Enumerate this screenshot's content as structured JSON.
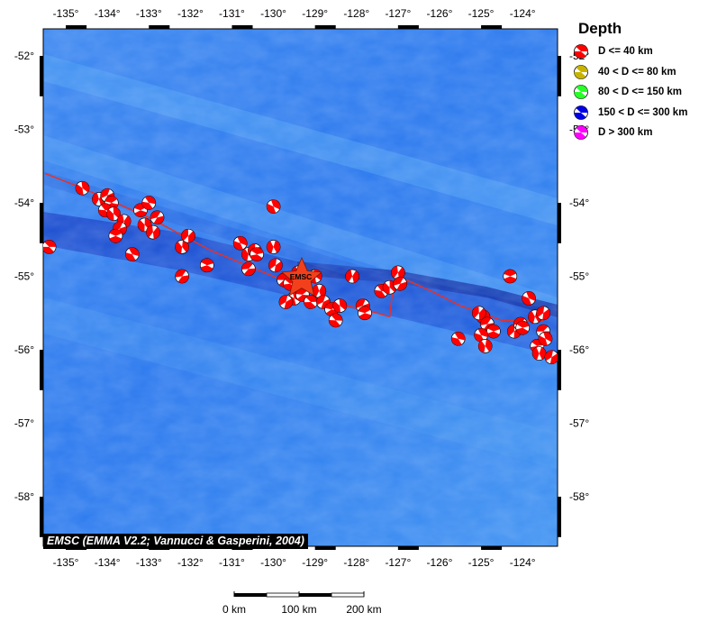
{
  "map": {
    "lon_range": [
      -135.5,
      -123.3
    ],
    "lat_range": [
      -52.0,
      -58.0
    ],
    "lon_ticks": [
      -135,
      -134,
      -133,
      -132,
      -131,
      -130,
      -129,
      -128,
      -127,
      -126,
      -125,
      -124
    ],
    "lat_ticks": [
      -52,
      -53,
      -54,
      -55,
      -56,
      -57,
      -58
    ],
    "lon_tick_labels": [
      "-135°",
      "-134°",
      "-133°",
      "-132°",
      "-131°",
      "-130°",
      "-129°",
      "-128°",
      "-127°",
      "-126°",
      "-125°",
      "-124°"
    ],
    "lat_tick_labels": [
      "-52°",
      "-53°",
      "-54°",
      "-55°",
      "-56°",
      "-57°",
      "-58°"
    ],
    "ocean_colors": {
      "deep": "#1a4fd8",
      "mid": "#2f7ff0",
      "light": "#4fa3f5"
    },
    "plate_boundary_color": "#e8302a",
    "star_color": "#f2401c",
    "star_label": "EMSC"
  },
  "legend": {
    "title": "Depth",
    "items": [
      {
        "label": "D <= 40 km",
        "color": "#ff0000"
      },
      {
        "label": "40 < D <= 80 km",
        "color": "#c8b400"
      },
      {
        "label": "80 < D <= 150 km",
        "color": "#28ff28"
      },
      {
        "label": "150 < D <= 300 km",
        "color": "#0000e6"
      },
      {
        "label": "D > 300 km",
        "color": "#ff00ff"
      }
    ]
  },
  "scale_bar": {
    "labels": [
      "0 km",
      "100 km",
      "200 km"
    ]
  },
  "credit": "EMSC (EMMA V2.2; Vannucci & Gasperini, 2004)",
  "events_depth_class": "D <= 40 km",
  "events": [
    [
      -135.4,
      -54.6
    ],
    [
      -134.6,
      -53.8
    ],
    [
      -134.2,
      -53.95
    ],
    [
      -134.0,
      -53.9
    ],
    [
      -133.9,
      -54.0
    ],
    [
      -134.05,
      -54.1
    ],
    [
      -133.85,
      -54.15
    ],
    [
      -133.6,
      -54.25
    ],
    [
      -133.7,
      -54.35
    ],
    [
      -133.2,
      -54.1
    ],
    [
      -133.0,
      -54.0
    ],
    [
      -133.1,
      -54.3
    ],
    [
      -132.9,
      -54.4
    ],
    [
      -132.8,
      -54.2
    ],
    [
      -133.8,
      -54.45
    ],
    [
      -133.4,
      -54.7
    ],
    [
      -132.2,
      -54.6
    ],
    [
      -132.05,
      -54.45
    ],
    [
      -132.2,
      -55.0
    ],
    [
      -131.6,
      -54.85
    ],
    [
      -130.8,
      -54.55
    ],
    [
      -130.6,
      -54.7
    ],
    [
      -130.45,
      -54.65
    ],
    [
      -130.6,
      -54.9
    ],
    [
      -130.4,
      -54.7
    ],
    [
      -130.0,
      -54.05
    ],
    [
      -130.0,
      -54.6
    ],
    [
      -129.95,
      -54.85
    ],
    [
      -129.75,
      -55.05
    ],
    [
      -129.6,
      -55.1
    ],
    [
      -129.5,
      -55.3
    ],
    [
      -129.4,
      -54.95
    ],
    [
      -129.7,
      -55.35
    ],
    [
      -129.3,
      -55.25
    ],
    [
      -129.1,
      -55.35
    ],
    [
      -129.0,
      -55.0
    ],
    [
      -128.9,
      -55.2
    ],
    [
      -128.8,
      -55.35
    ],
    [
      -128.6,
      -55.45
    ],
    [
      -128.5,
      -55.6
    ],
    [
      -128.4,
      -55.4
    ],
    [
      -128.1,
      -55.0
    ],
    [
      -127.85,
      -55.4
    ],
    [
      -127.8,
      -55.5
    ],
    [
      -127.4,
      -55.2
    ],
    [
      -127.2,
      -55.15
    ],
    [
      -127.0,
      -54.95
    ],
    [
      -126.95,
      -55.1
    ],
    [
      -124.3,
      -55.0
    ],
    [
      -125.55,
      -55.85
    ],
    [
      -124.95,
      -55.55
    ],
    [
      -125.05,
      -55.5
    ],
    [
      -124.85,
      -55.65
    ],
    [
      -124.7,
      -55.75
    ],
    [
      -125.0,
      -55.8
    ],
    [
      -124.9,
      -55.95
    ],
    [
      -124.2,
      -55.75
    ],
    [
      -124.05,
      -55.65
    ],
    [
      -124.0,
      -55.7
    ],
    [
      -123.85,
      -55.3
    ],
    [
      -123.7,
      -55.55
    ],
    [
      -123.5,
      -55.5
    ],
    [
      -123.5,
      -55.75
    ],
    [
      -123.65,
      -55.95
    ],
    [
      -123.45,
      -55.85
    ],
    [
      -123.6,
      -56.05
    ],
    [
      -123.3,
      -56.1
    ]
  ],
  "tectonic_line": [
    [
      -135.5,
      -53.6
    ],
    [
      -134.6,
      -53.8
    ],
    [
      -133.0,
      -54.2
    ],
    [
      -131.5,
      -54.65
    ],
    [
      -130.0,
      -55.0
    ],
    [
      -129.0,
      -55.3
    ],
    [
      -127.5,
      -55.5
    ],
    [
      -127.2,
      -55.55
    ],
    [
      -127.1,
      -55.05
    ],
    [
      -126.8,
      -55.05
    ],
    [
      -126.2,
      -55.2
    ],
    [
      -125.5,
      -55.4
    ],
    [
      -124.5,
      -55.6
    ],
    [
      -123.8,
      -55.6
    ],
    [
      -123.5,
      -55.6
    ]
  ]
}
